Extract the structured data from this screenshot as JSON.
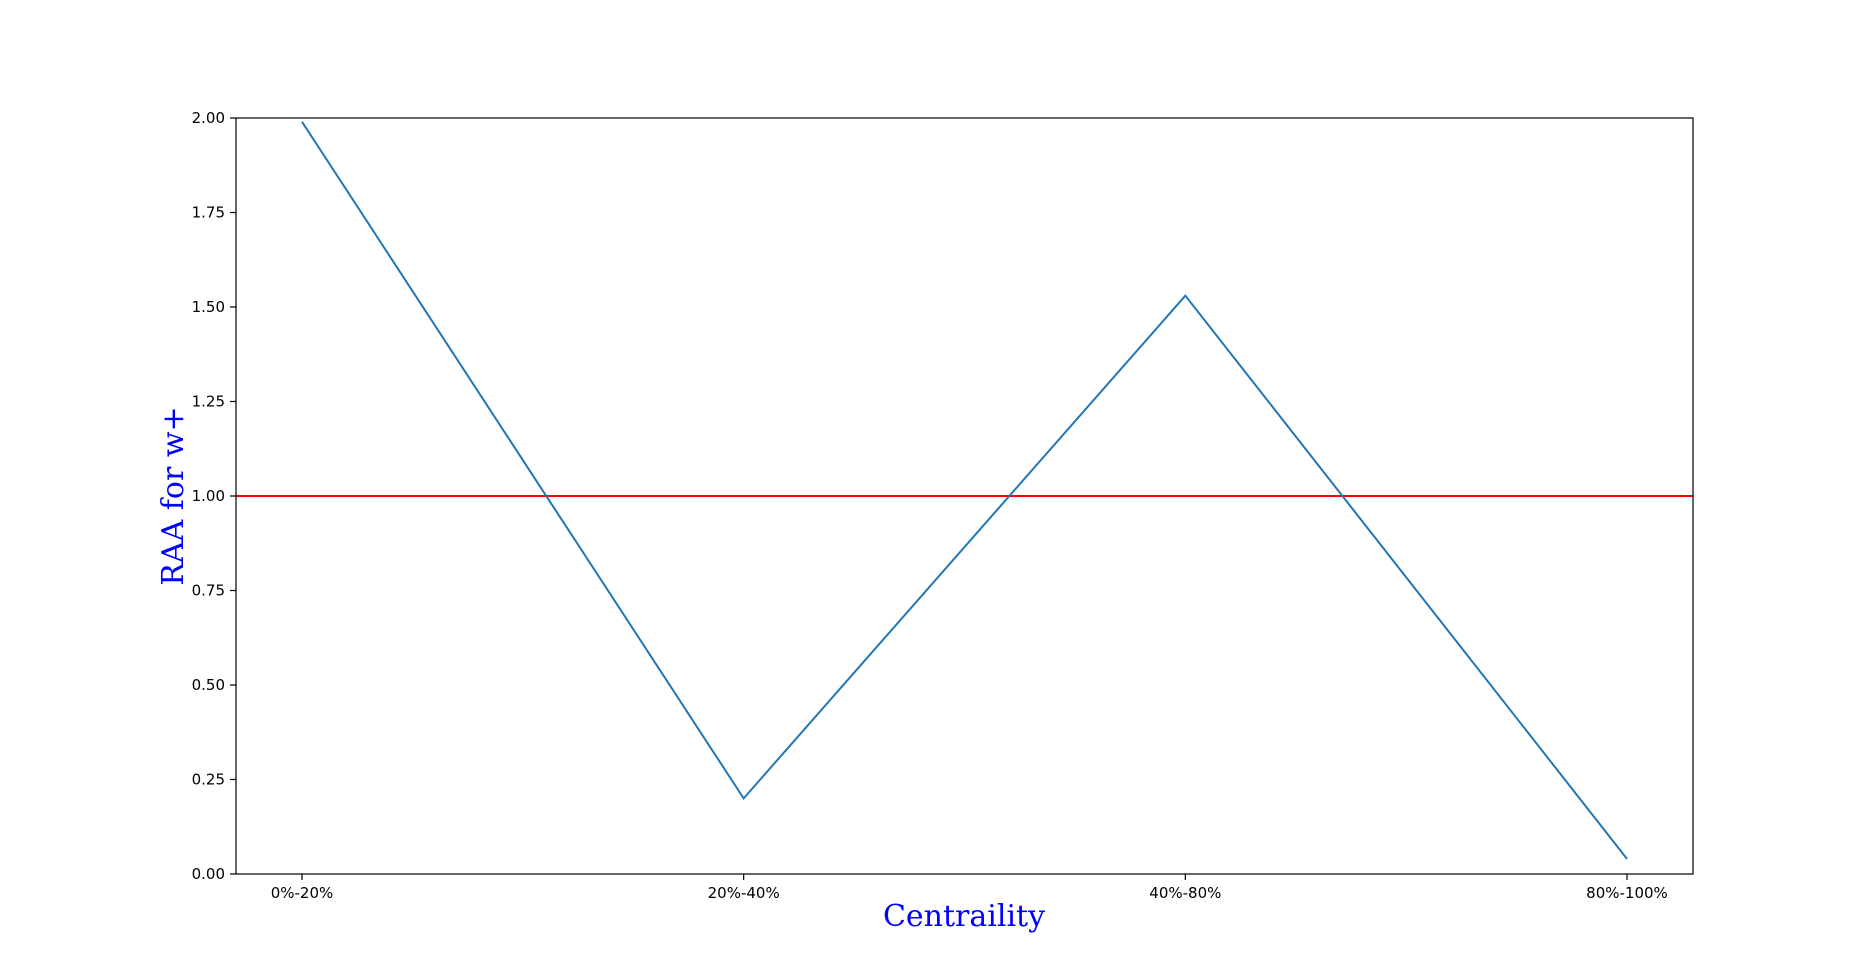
{
  "chart_data": {
    "type": "line",
    "title": "",
    "xlabel": "Centraility",
    "ylabel": "RAA for w+",
    "categories": [
      "0%-20%",
      "20%-40%",
      "40%-80%",
      "80%-100%"
    ],
    "series": [
      {
        "values": [
          1.99,
          0.2,
          1.53,
          0.04
        ],
        "color": "#1f77b4"
      }
    ],
    "reference_line": {
      "y": 1.0,
      "color": "#ff0000"
    },
    "ylim": [
      0,
      2
    ],
    "yticks": [
      "0.00",
      "0.25",
      "0.50",
      "0.75",
      "1.00",
      "1.25",
      "1.50",
      "1.75",
      "2.00"
    ],
    "label_color": "#0000ff",
    "grid": false,
    "legend": "none"
  }
}
